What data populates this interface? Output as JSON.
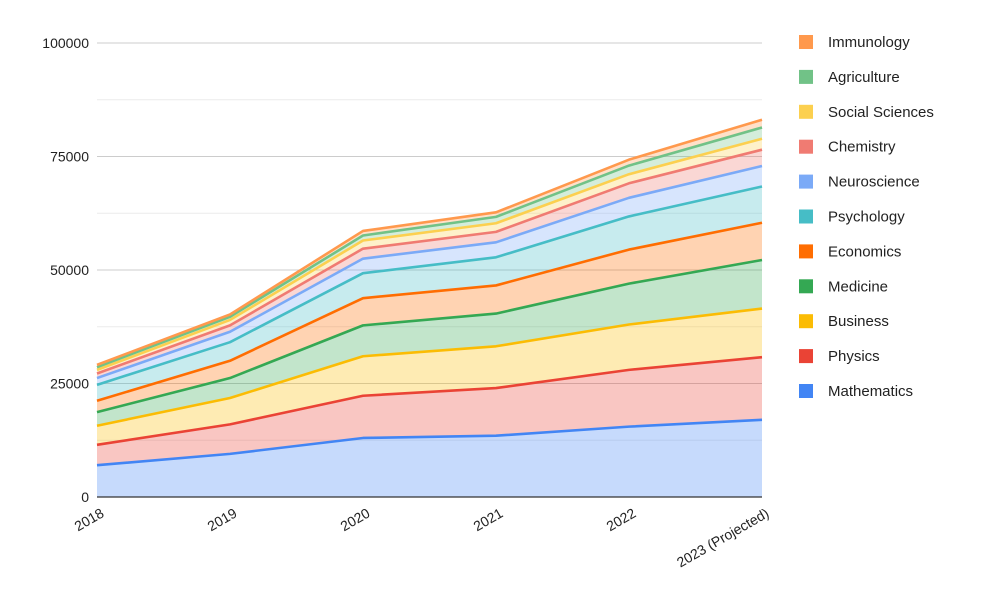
{
  "chart_data": {
    "type": "area",
    "stacked": true,
    "title": "",
    "xlabel": "",
    "ylabel": "",
    "ylim": [
      0,
      100000
    ],
    "yticks": [
      0,
      25000,
      50000,
      75000,
      100000
    ],
    "ytick_labels": [
      "0",
      "25000",
      "50000",
      "75000",
      "100000"
    ],
    "grid": true,
    "legend_position": "right",
    "categories": [
      "2018",
      "2019",
      "2020",
      "2021",
      "2022",
      "2023 (Projected)"
    ],
    "series": [
      {
        "name": "Mathematics",
        "color": "#4285f4",
        "values": [
          7000,
          9500,
          13000,
          13500,
          15500,
          17000
        ]
      },
      {
        "name": "Physics",
        "color": "#ea4335",
        "values": [
          4500,
          6500,
          9300,
          10500,
          12500,
          13800
        ]
      },
      {
        "name": "Business",
        "color": "#fbbc04",
        "values": [
          4200,
          5800,
          8700,
          9200,
          10000,
          10700
        ]
      },
      {
        "name": "Medicine",
        "color": "#34a853",
        "values": [
          3000,
          4400,
          6800,
          7200,
          9000,
          10700
        ]
      },
      {
        "name": "Economics",
        "color": "#ff6d01",
        "values": [
          2500,
          3800,
          6000,
          6200,
          7500,
          8200
        ]
      },
      {
        "name": "Psychology",
        "color": "#46bdc6",
        "values": [
          3500,
          4100,
          5500,
          6200,
          7300,
          8000
        ]
      },
      {
        "name": "Neuroscience",
        "color": "#7baaf7",
        "values": [
          1500,
          2300,
          3200,
          3300,
          4100,
          4500
        ]
      },
      {
        "name": "Chemistry",
        "color": "#f07b72",
        "values": [
          1000,
          1400,
          2200,
          2300,
          3200,
          3600
        ]
      },
      {
        "name": "Social Sciences",
        "color": "#fcd04f",
        "values": [
          800,
          1200,
          1800,
          1900,
          2000,
          2400
        ]
      },
      {
        "name": "Agriculture",
        "color": "#71c287",
        "values": [
          600,
          700,
          1100,
          1400,
          1900,
          2500
        ]
      },
      {
        "name": "Immunology",
        "color": "#ff994d",
        "values": [
          500,
          500,
          1000,
          1000,
          1300,
          1700
        ]
      }
    ]
  }
}
